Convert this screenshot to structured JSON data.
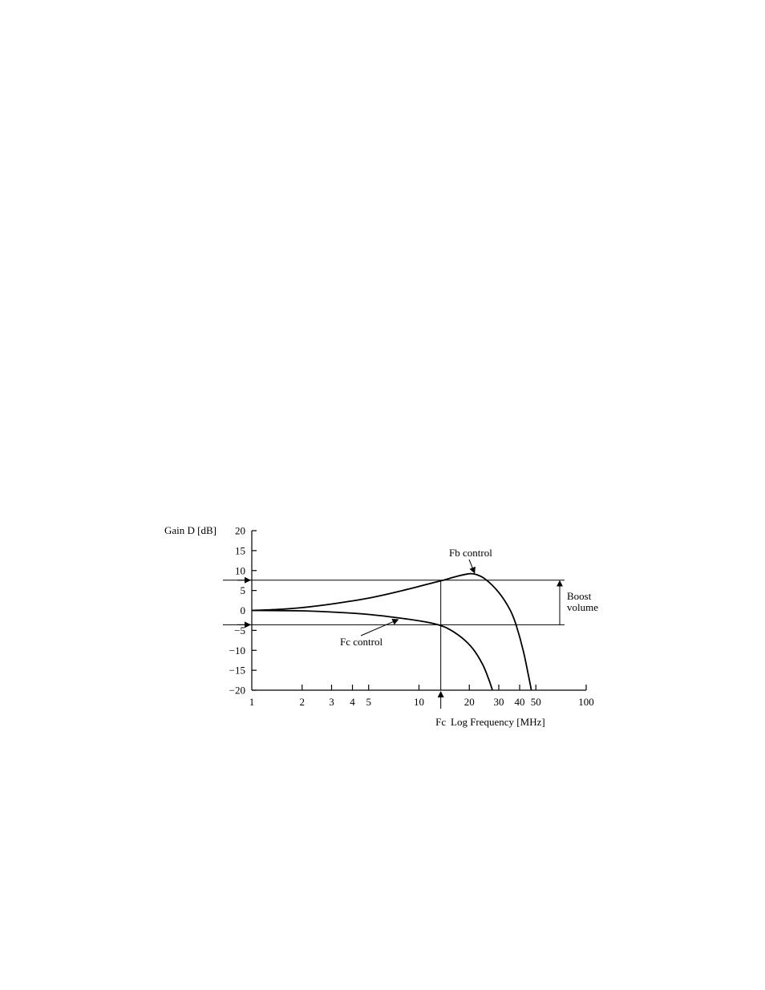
{
  "chart_data": {
    "type": "line",
    "ylabel": "Gain D [dB]",
    "xlabel": "Log Frequency [MHz]",
    "x_scale": "log",
    "xlim": [
      1,
      100
    ],
    "ylim": [
      -20,
      20
    ],
    "x_ticks": [
      1,
      2,
      3,
      4,
      5,
      10,
      20,
      30,
      40,
      50,
      100
    ],
    "x_tick_labels": [
      "1",
      "2",
      "3",
      "4",
      "5",
      "10",
      "20",
      "30",
      "40",
      "50",
      "100"
    ],
    "y_ticks": [
      20,
      15,
      10,
      5,
      0,
      -5,
      -10,
      -15,
      -20
    ],
    "y_tick_labels": [
      "20",
      "15",
      "10",
      "5",
      "0",
      "−5",
      "−10",
      "−15",
      "−20"
    ],
    "grid": false,
    "series": [
      {
        "name": "Fb control",
        "points": [
          [
            1,
            0
          ],
          [
            1.5,
            0.3
          ],
          [
            2,
            0.7
          ],
          [
            3,
            1.6
          ],
          [
            5,
            3.1
          ],
          [
            8,
            5.0
          ],
          [
            12,
            6.9
          ],
          [
            14,
            7.6
          ],
          [
            17,
            8.6
          ],
          [
            20,
            9.2
          ],
          [
            22,
            9.0
          ],
          [
            25,
            7.8
          ],
          [
            30,
            4.5
          ],
          [
            35,
            0.2
          ],
          [
            38,
            -3.5
          ],
          [
            42,
            -10
          ],
          [
            45,
            -16
          ],
          [
            47,
            -20
          ]
        ]
      },
      {
        "name": "Fc control",
        "points": [
          [
            1,
            0
          ],
          [
            2,
            -0.1
          ],
          [
            3,
            -0.4
          ],
          [
            5,
            -1.0
          ],
          [
            8,
            -2.0
          ],
          [
            11,
            -2.9
          ],
          [
            13,
            -3.6
          ],
          [
            15,
            -4.6
          ],
          [
            18,
            -6.8
          ],
          [
            21,
            -9.6
          ],
          [
            24,
            -13.5
          ],
          [
            26,
            -17
          ],
          [
            27.5,
            -20
          ]
        ]
      }
    ],
    "reference_lines": {
      "upper_gain_db": 7.6,
      "lower_gain_db": -3.6,
      "fc_mhz": 13.5
    },
    "annotations": {
      "fb_label": "Fb control",
      "fc_label": "Fc control",
      "boost_line1": "Boost",
      "boost_line2": "volume",
      "fc_marker": "Fc"
    }
  }
}
